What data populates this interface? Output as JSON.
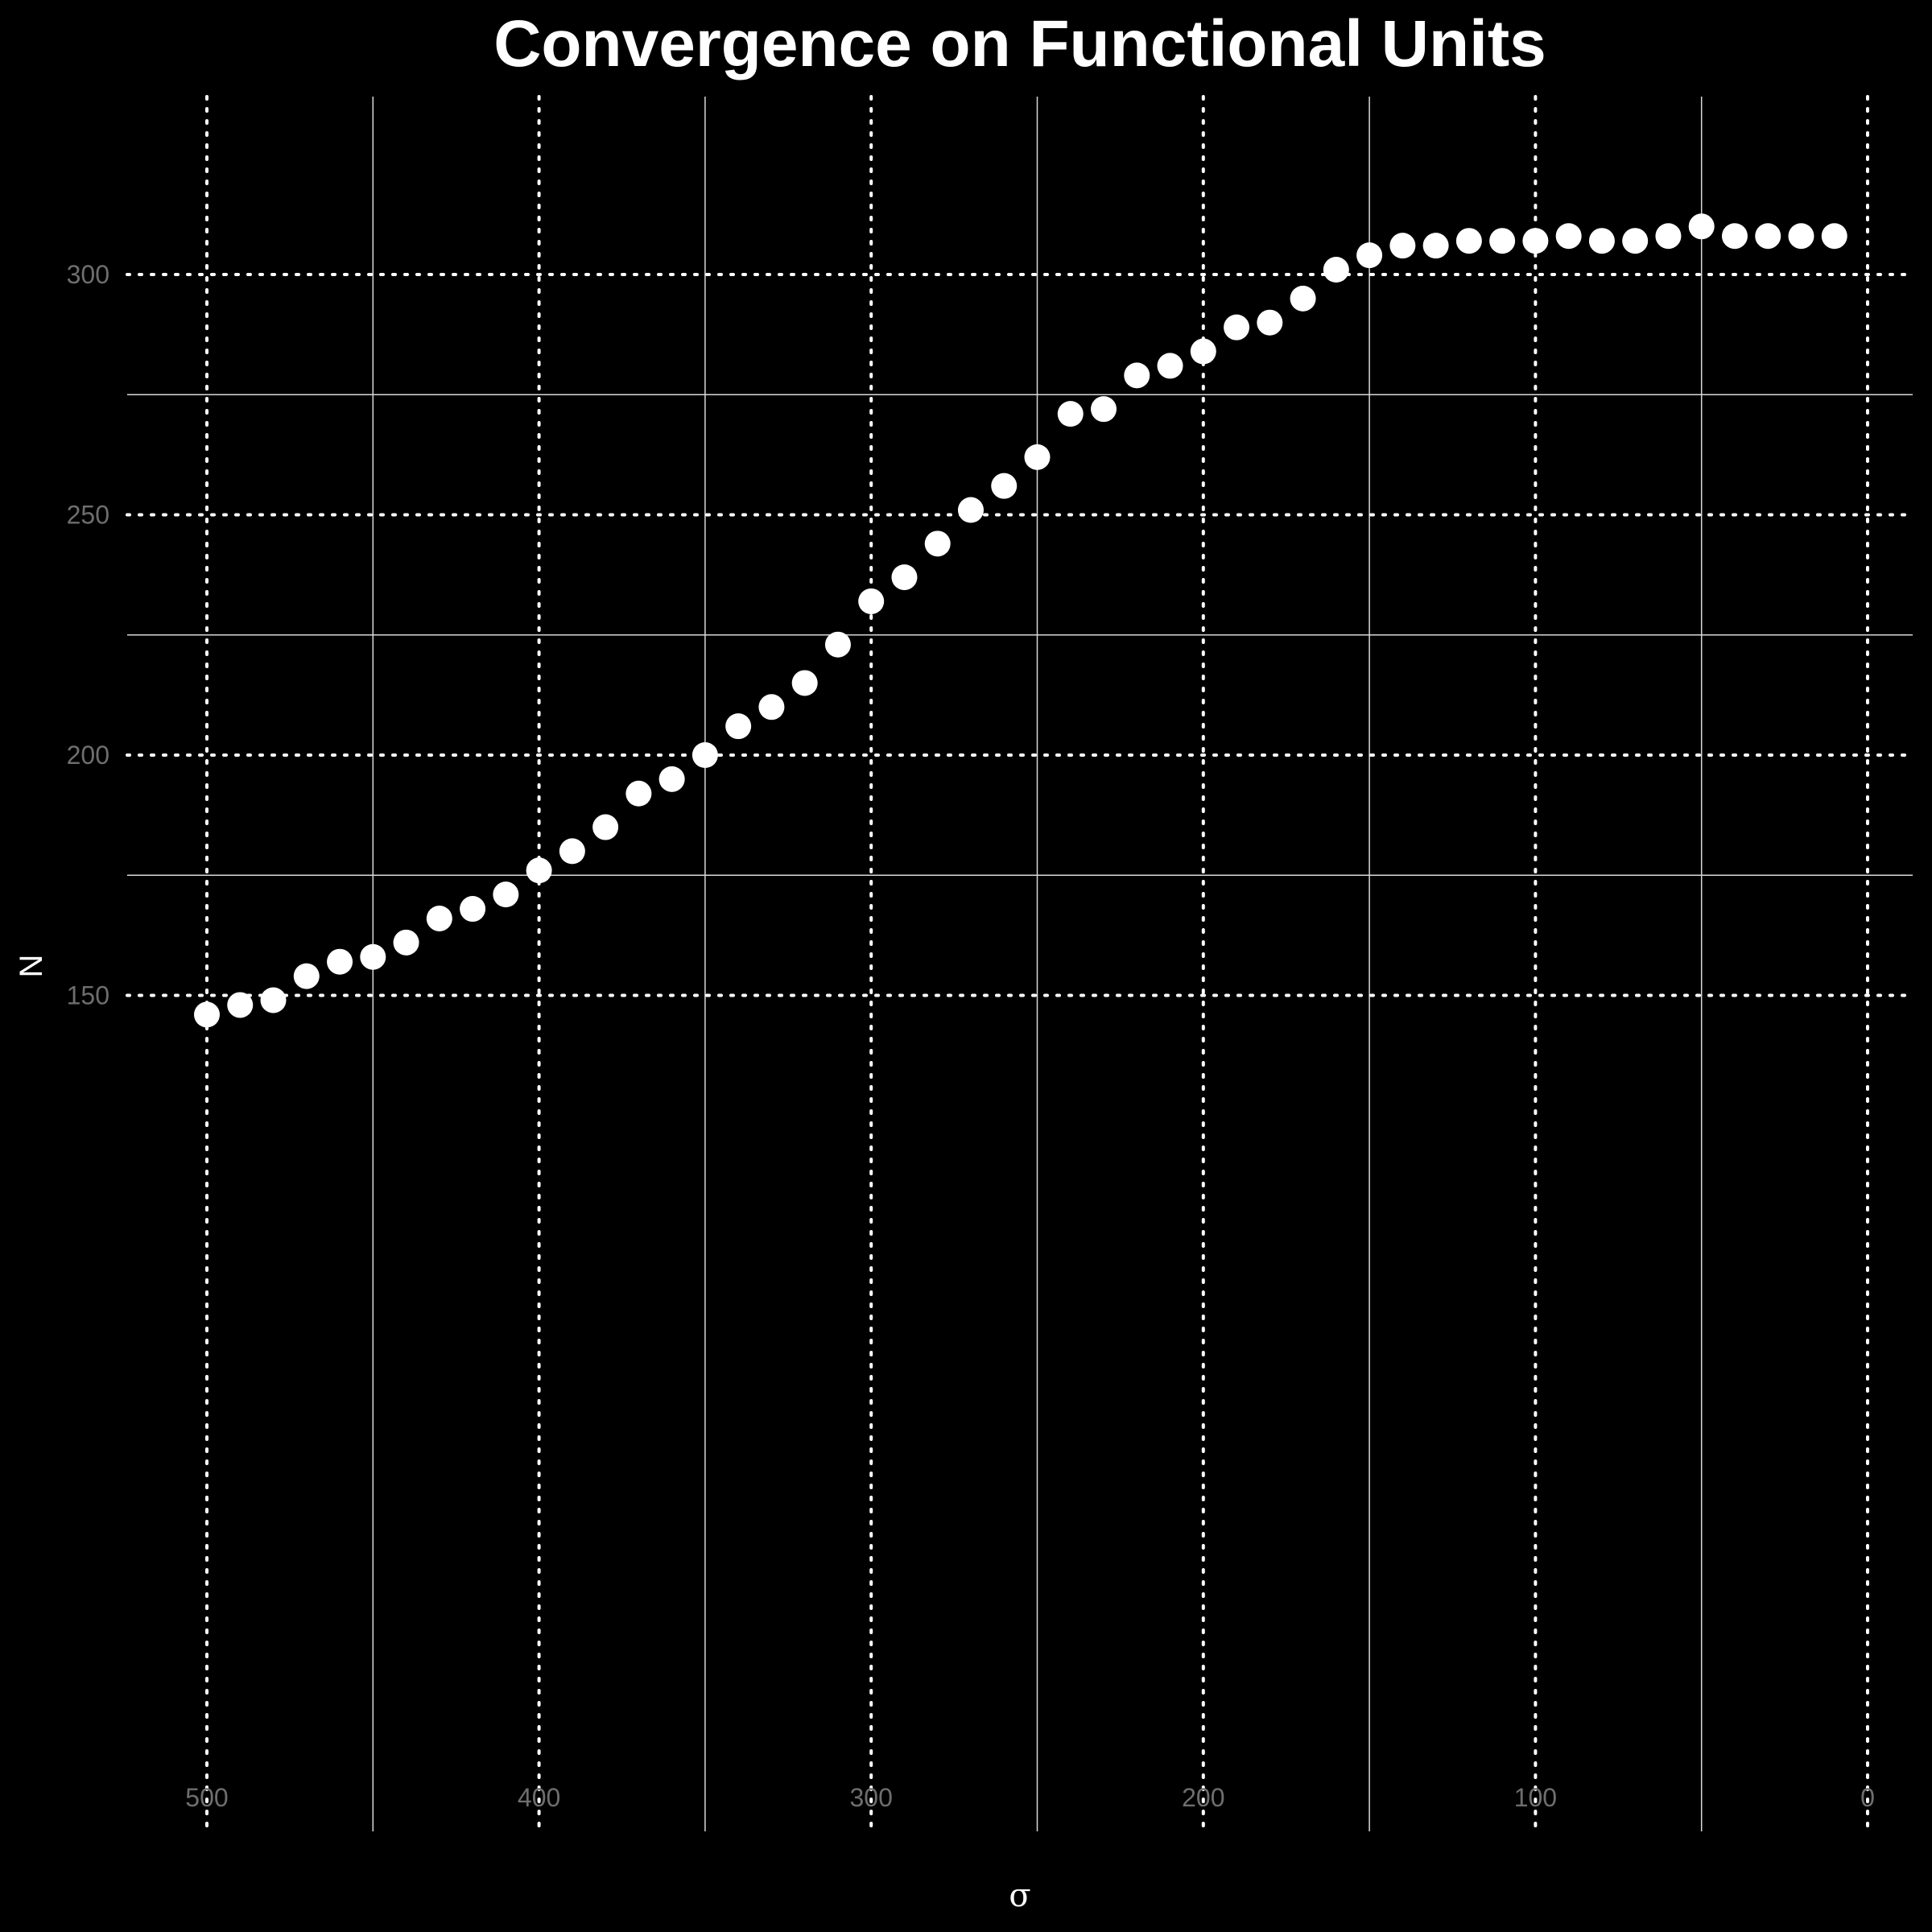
{
  "chart_data": {
    "type": "scatter",
    "title": "Convergence on Functional Units",
    "xlabel": "σ",
    "ylabel": "N",
    "x_reversed": true,
    "xlim": [
      525,
      0
    ],
    "ylim": [
      140,
      318
    ],
    "x_ticks": [
      500,
      400,
      300,
      200,
      100,
      0
    ],
    "y_ticks": [
      150,
      200,
      250,
      300
    ],
    "x_minor_gridlines": [
      450,
      350,
      250,
      150,
      50
    ],
    "y_minor_gridlines": [
      175,
      225,
      275
    ],
    "grid": true,
    "grid_major_style": "dotted",
    "grid_minor_style": "solid",
    "marker_color": "#ffffff",
    "background_color": "#000000",
    "x": [
      500,
      490,
      480,
      470,
      460,
      450,
      440,
      430,
      420,
      410,
      400,
      390,
      380,
      370,
      360,
      350,
      340,
      330,
      320,
      310,
      300,
      290,
      280,
      270,
      260,
      250,
      240,
      230,
      220,
      210,
      200,
      190,
      180,
      170,
      160,
      150,
      140,
      130,
      120,
      110,
      100,
      90,
      80,
      70,
      60,
      50,
      40,
      30,
      20,
      10
    ],
    "y": [
      146,
      148,
      149,
      154,
      157,
      158,
      161,
      166,
      168,
      171,
      176,
      180,
      185,
      192,
      195,
      200,
      206,
      210,
      215,
      223,
      232,
      237,
      244,
      251,
      256,
      262,
      271,
      272,
      279,
      281,
      284,
      289,
      290,
      295,
      301,
      304,
      306,
      306,
      307,
      307,
      307,
      308,
      307,
      307,
      308,
      310,
      308,
      308,
      308,
      308
    ]
  }
}
